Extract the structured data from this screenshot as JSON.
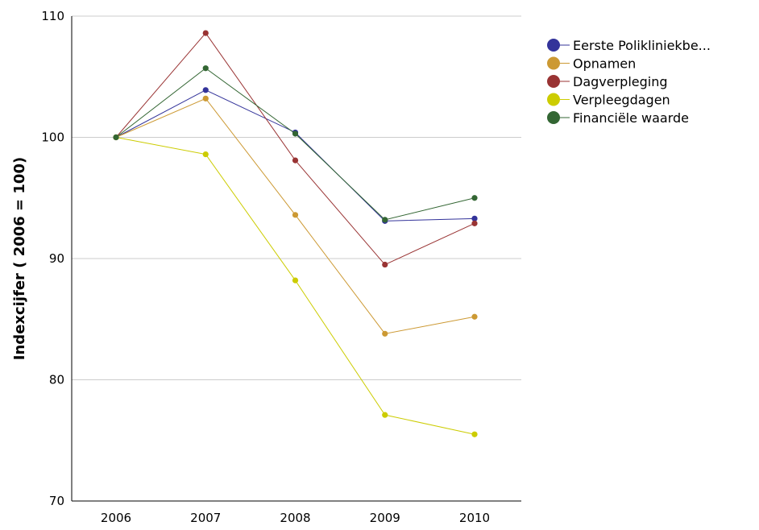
{
  "chart_data": {
    "type": "line",
    "title": "",
    "xlabel": "",
    "ylabel": "Indexcijfer ( 2006 = 100)",
    "categories": [
      "2006",
      "2007",
      "2008",
      "2009",
      "2010"
    ],
    "ylim": [
      70,
      110
    ],
    "yticks": [
      "70",
      "80",
      "90",
      "100",
      "110"
    ],
    "grid": true,
    "legend_position": "top-right",
    "series": [
      {
        "name": "Eerste Polikliniekbe...",
        "color": "#33339a",
        "values": [
          100,
          103.9,
          100.4,
          93.1,
          93.3
        ]
      },
      {
        "name": "Opnamen",
        "color": "#cc9933",
        "values": [
          100,
          103.2,
          93.6,
          83.8,
          85.2
        ]
      },
      {
        "name": "Dagverpleging",
        "color": "#993333",
        "values": [
          100,
          108.6,
          98.1,
          89.5,
          92.9
        ]
      },
      {
        "name": "Verpleegdagen",
        "color": "#cccc00",
        "values": [
          100,
          98.6,
          88.2,
          77.1,
          75.5
        ]
      },
      {
        "name": "Financiële waarde",
        "color": "#336633",
        "values": [
          100,
          105.7,
          100.3,
          93.2,
          95.0
        ]
      }
    ]
  }
}
